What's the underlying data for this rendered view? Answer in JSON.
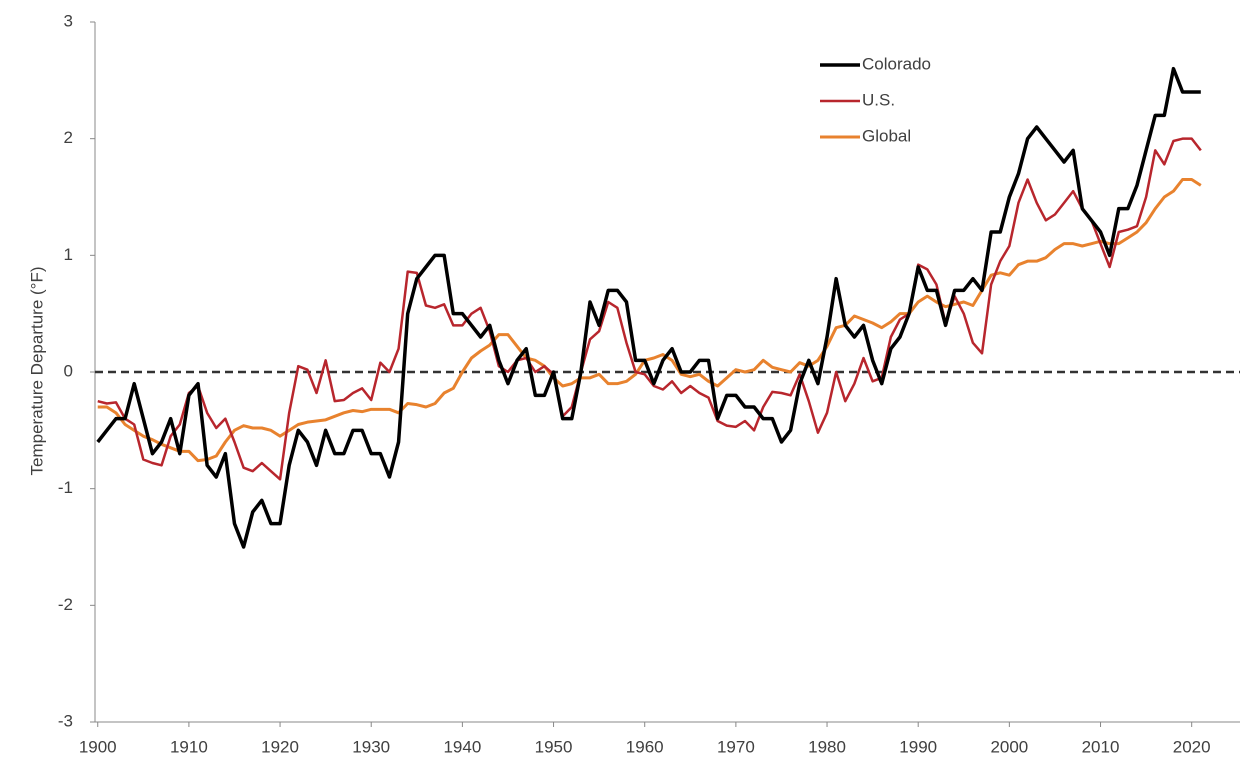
{
  "chart_data": {
    "type": "line",
    "y_label": "Temperature Departure (°F)",
    "x": [
      1900,
      1901,
      1902,
      1903,
      1904,
      1905,
      1906,
      1907,
      1908,
      1909,
      1910,
      1911,
      1912,
      1913,
      1914,
      1915,
      1916,
      1917,
      1918,
      1919,
      1920,
      1921,
      1922,
      1923,
      1924,
      1925,
      1926,
      1927,
      1928,
      1929,
      1930,
      1931,
      1932,
      1933,
      1934,
      1935,
      1936,
      1937,
      1938,
      1939,
      1940,
      1941,
      1942,
      1943,
      1944,
      1945,
      1946,
      1947,
      1948,
      1949,
      1950,
      1951,
      1952,
      1953,
      1954,
      1955,
      1956,
      1957,
      1958,
      1959,
      1960,
      1961,
      1962,
      1963,
      1964,
      1965,
      1966,
      1967,
      1968,
      1969,
      1970,
      1971,
      1972,
      1973,
      1974,
      1975,
      1976,
      1977,
      1978,
      1979,
      1980,
      1981,
      1982,
      1983,
      1984,
      1985,
      1986,
      1987,
      1988,
      1989,
      1990,
      1991,
      1992,
      1993,
      1994,
      1995,
      1996,
      1997,
      1998,
      1999,
      2000,
      2001,
      2002,
      2003,
      2004,
      2005,
      2006,
      2007,
      2008,
      2009,
      2010,
      2011,
      2012,
      2013,
      2014,
      2015,
      2016,
      2017,
      2018,
      2019,
      2020,
      2021
    ],
    "series": [
      {
        "name": "Colorado",
        "color": "#000000",
        "width": 3.5,
        "values": [
          -0.6,
          -0.5,
          -0.4,
          -0.4,
          -0.1,
          -0.4,
          -0.7,
          -0.6,
          -0.4,
          -0.7,
          -0.2,
          -0.1,
          -0.8,
          -0.9,
          -0.7,
          -1.3,
          -1.5,
          -1.2,
          -1.1,
          -1.3,
          -1.3,
          -0.8,
          -0.5,
          -0.6,
          -0.8,
          -0.5,
          -0.7,
          -0.7,
          -0.5,
          -0.5,
          -0.7,
          -0.7,
          -0.9,
          -0.6,
          0.5,
          0.8,
          0.9,
          1.0,
          1.0,
          0.5,
          0.5,
          0.4,
          0.3,
          0.4,
          0.1,
          -0.1,
          0.1,
          0.2,
          -0.2,
          -0.2,
          0.0,
          -0.4,
          -0.4,
          0.0,
          0.6,
          0.4,
          0.7,
          0.7,
          0.6,
          0.1,
          0.1,
          -0.1,
          0.1,
          0.2,
          0.0,
          0.0,
          0.1,
          0.1,
          -0.4,
          -0.2,
          -0.2,
          -0.3,
          -0.3,
          -0.4,
          -0.4,
          -0.6,
          -0.5,
          -0.1,
          0.1,
          -0.1,
          0.3,
          0.8,
          0.4,
          0.3,
          0.4,
          0.1,
          -0.1,
          0.2,
          0.3,
          0.5,
          0.9,
          0.7,
          0.7,
          0.4,
          0.7,
          0.7,
          0.8,
          0.7,
          1.2,
          1.2,
          1.5,
          1.7,
          2.0,
          2.1,
          2.0,
          1.9,
          1.8,
          1.9,
          1.4,
          1.3,
          1.2,
          1.0,
          1.4,
          1.4,
          1.6,
          1.9,
          2.2,
          2.2,
          2.6,
          2.4,
          2.4,
          2.4
        ]
      },
      {
        "name": "U.S.",
        "color": "#b8262d",
        "width": 2.5,
        "values": [
          -0.25,
          -0.27,
          -0.26,
          -0.4,
          -0.45,
          -0.75,
          -0.78,
          -0.8,
          -0.55,
          -0.45,
          -0.18,
          -0.12,
          -0.35,
          -0.48,
          -0.4,
          -0.6,
          -0.82,
          -0.85,
          -0.78,
          -0.85,
          -0.92,
          -0.35,
          0.05,
          0.02,
          -0.18,
          0.1,
          -0.25,
          -0.24,
          -0.18,
          -0.14,
          -0.24,
          0.08,
          0.0,
          0.2,
          0.86,
          0.85,
          0.57,
          0.55,
          0.58,
          0.4,
          0.4,
          0.5,
          0.55,
          0.35,
          0.05,
          0.0,
          0.1,
          0.12,
          0.0,
          0.05,
          -0.02,
          -0.38,
          -0.3,
          0.0,
          0.28,
          0.35,
          0.6,
          0.55,
          0.25,
          0.0,
          -0.02,
          -0.12,
          -0.15,
          -0.08,
          -0.18,
          -0.12,
          -0.18,
          -0.22,
          -0.42,
          -0.46,
          -0.47,
          -0.42,
          -0.5,
          -0.3,
          -0.17,
          -0.18,
          -0.2,
          -0.02,
          -0.25,
          -0.52,
          -0.35,
          0.0,
          -0.25,
          -0.1,
          0.12,
          -0.08,
          -0.05,
          0.3,
          0.45,
          0.5,
          0.92,
          0.88,
          0.75,
          0.42,
          0.65,
          0.5,
          0.25,
          0.16,
          0.75,
          0.95,
          1.08,
          1.45,
          1.65,
          1.45,
          1.3,
          1.35,
          1.45,
          1.55,
          1.4,
          1.3,
          1.1,
          0.9,
          1.2,
          1.22,
          1.25,
          1.5,
          1.9,
          1.78,
          1.98,
          2.0,
          2.0,
          1.9
        ]
      },
      {
        "name": "Global",
        "color": "#e8822e",
        "width": 3,
        "values": [
          -0.3,
          -0.3,
          -0.35,
          -0.45,
          -0.5,
          -0.55,
          -0.58,
          -0.62,
          -0.65,
          -0.68,
          -0.68,
          -0.76,
          -0.75,
          -0.72,
          -0.6,
          -0.5,
          -0.46,
          -0.48,
          -0.48,
          -0.5,
          -0.55,
          -0.5,
          -0.45,
          -0.43,
          -0.42,
          -0.41,
          -0.38,
          -0.35,
          -0.33,
          -0.34,
          -0.32,
          -0.32,
          -0.32,
          -0.35,
          -0.27,
          -0.28,
          -0.3,
          -0.27,
          -0.18,
          -0.14,
          0.0,
          0.12,
          0.18,
          0.23,
          0.32,
          0.32,
          0.22,
          0.12,
          0.1,
          0.05,
          -0.05,
          -0.12,
          -0.1,
          -0.05,
          -0.05,
          -0.02,
          -0.1,
          -0.1,
          -0.08,
          -0.02,
          0.1,
          0.12,
          0.15,
          0.1,
          -0.02,
          -0.04,
          -0.02,
          -0.08,
          -0.12,
          -0.05,
          0.02,
          0.0,
          0.02,
          0.1,
          0.04,
          0.02,
          0.0,
          0.08,
          0.05,
          0.1,
          0.22,
          0.38,
          0.4,
          0.48,
          0.45,
          0.42,
          0.38,
          0.43,
          0.5,
          0.5,
          0.6,
          0.65,
          0.6,
          0.56,
          0.58,
          0.6,
          0.57,
          0.7,
          0.83,
          0.85,
          0.83,
          0.92,
          0.95,
          0.95,
          0.98,
          1.05,
          1.1,
          1.1,
          1.08,
          1.1,
          1.12,
          1.1,
          1.1,
          1.15,
          1.2,
          1.28,
          1.4,
          1.5,
          1.55,
          1.65,
          1.65,
          1.6
        ]
      }
    ],
    "reference_line": 0,
    "xlim": [
      1899.7,
      2025.3
    ],
    "xticks": [
      1900,
      1910,
      1920,
      1930,
      1940,
      1950,
      1960,
      1970,
      1980,
      1990,
      2000,
      2010,
      2020
    ],
    "ylim": [
      -3,
      3
    ],
    "yticks": [
      -3,
      -2,
      -1,
      0,
      1,
      2,
      3
    ],
    "grid": false,
    "legend": "upper right"
  }
}
